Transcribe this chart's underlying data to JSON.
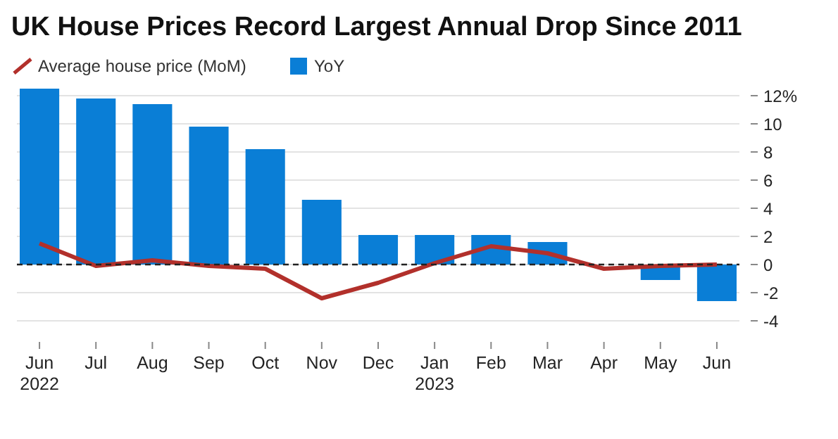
{
  "chart_data": {
    "type": "bar",
    "title": "UK House Prices Record Largest Annual Drop Since 2011",
    "categories": [
      "Jun\n2022",
      "Jul",
      "Aug",
      "Sep",
      "Oct",
      "Nov",
      "Dec",
      "Jan\n2023",
      "Feb",
      "Mar",
      "Apr",
      "May",
      "Jun"
    ],
    "series": [
      {
        "name": "Average house price (MoM)",
        "type": "line",
        "color": "#b2302b",
        "values": [
          1.5,
          -0.1,
          0.3,
          -0.1,
          -0.3,
          -2.4,
          -1.3,
          0.1,
          1.3,
          0.8,
          -0.3,
          -0.1,
          0
        ]
      },
      {
        "name": "YoY",
        "color": "#0a7ed6",
        "values": [
          12.5,
          11.8,
          11.4,
          9.8,
          8.2,
          4.6,
          2.1,
          2.1,
          2.1,
          1.6,
          0,
          -1.1,
          -2.6
        ]
      }
    ],
    "ylim": [
      -4,
      12.6
    ],
    "yticks": [
      {
        "value": 12,
        "label": "12%"
      },
      10,
      8,
      6,
      4,
      2,
      0,
      -2,
      -4
    ],
    "grid": "y",
    "legend": "top left",
    "marker": "none",
    "line_style": "solid",
    "ref_lines": [
      {
        "axis": "y",
        "value": 0,
        "label": null,
        "color": "#222222",
        "line_style": "dashed"
      }
    ]
  }
}
